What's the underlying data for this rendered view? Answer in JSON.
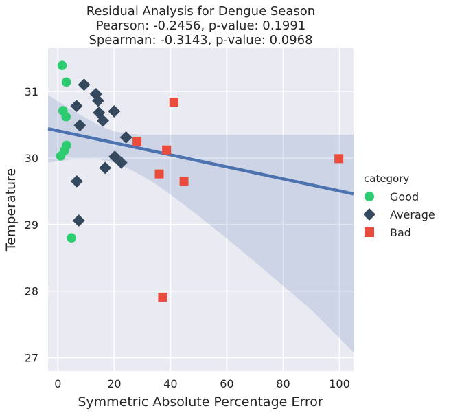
{
  "title_lines": [
    "Residual Analysis for Dengue Season",
    "Pearson: -0.2456, p-value: 0.1991",
    "Spearman: -0.3143, p-value: 0.0968"
  ],
  "legend": {
    "title": "category",
    "items": [
      {
        "label": "Good",
        "color": "#2ecc71",
        "marker": "circle"
      },
      {
        "label": "Average",
        "color": "#34495e",
        "marker": "diamond"
      },
      {
        "label": "Bad",
        "color": "#e74c3c",
        "marker": "square"
      }
    ]
  },
  "chart_data": {
    "type": "scatter",
    "xlabel": "Symmetric Absolute Percentage Error",
    "ylabel": "Temperature",
    "xlim": [
      -3.5,
      105
    ],
    "ylim": [
      26.8,
      31.65
    ],
    "xticks": [
      0,
      20,
      40,
      60,
      80,
      100
    ],
    "yticks": [
      27,
      28,
      29,
      30,
      31
    ],
    "grid": true,
    "legend_position": "right",
    "series": [
      {
        "name": "Good",
        "color": "#2ecc71",
        "marker": "circle",
        "points": [
          [
            1.5,
            31.39
          ],
          [
            3.0,
            31.14
          ],
          [
            1.8,
            30.71
          ],
          [
            2.9,
            30.62
          ],
          [
            3.1,
            30.19
          ],
          [
            2.3,
            30.11
          ],
          [
            1.0,
            30.03
          ],
          [
            4.8,
            28.8
          ]
        ]
      },
      {
        "name": "Average",
        "color": "#34495e",
        "marker": "diamond",
        "points": [
          [
            9.3,
            31.1
          ],
          [
            13.5,
            30.96
          ],
          [
            14.3,
            30.86
          ],
          [
            6.6,
            30.78
          ],
          [
            14.6,
            30.68
          ],
          [
            20.0,
            30.7
          ],
          [
            16.0,
            30.56
          ],
          [
            7.8,
            30.49
          ],
          [
            24.2,
            30.31
          ],
          [
            20.2,
            30.02
          ],
          [
            22.5,
            29.93
          ],
          [
            16.8,
            29.85
          ],
          [
            6.7,
            29.65
          ],
          [
            7.4,
            29.06
          ]
        ]
      },
      {
        "name": "Bad",
        "color": "#e74c3c",
        "marker": "square",
        "points": [
          [
            41.2,
            30.84
          ],
          [
            28.1,
            30.25
          ],
          [
            38.6,
            30.12
          ],
          [
            99.8,
            29.99
          ],
          [
            36.0,
            29.76
          ],
          [
            44.8,
            29.65
          ],
          [
            37.2,
            27.91
          ]
        ]
      }
    ],
    "regression": {
      "color": "#4c72b0",
      "line": [
        [
          -3.5,
          30.44
        ],
        [
          105,
          29.46
        ]
      ],
      "ci": [
        [
          -3.5,
          30.95,
          29.93
        ],
        [
          0,
          30.85,
          29.95
        ],
        [
          5,
          30.72,
          29.98
        ],
        [
          10,
          30.6,
          29.99
        ],
        [
          15,
          30.48,
          29.98
        ],
        [
          20,
          30.4,
          29.93
        ],
        [
          25,
          30.36,
          29.84
        ],
        [
          30,
          30.35,
          29.73
        ],
        [
          35,
          30.35,
          29.6
        ],
        [
          40,
          30.35,
          29.45
        ],
        [
          50,
          30.35,
          29.13
        ],
        [
          60,
          30.35,
          28.79
        ],
        [
          70,
          30.35,
          28.44
        ],
        [
          80,
          30.35,
          28.08
        ],
        [
          90,
          30.35,
          27.72
        ],
        [
          105,
          30.35,
          27.08
        ]
      ]
    }
  }
}
